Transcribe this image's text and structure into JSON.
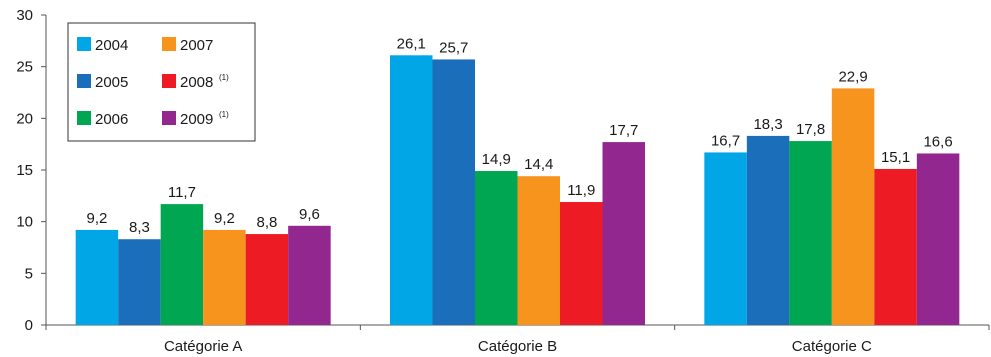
{
  "chart_data": {
    "type": "bar",
    "categories": [
      "Catégorie A",
      "Catégorie B",
      "Catégorie C"
    ],
    "series": [
      {
        "name": "2004",
        "note": "",
        "color": "#00a6e6",
        "values": [
          9.2,
          26.1,
          16.7
        ],
        "labels": [
          "9,2",
          "26,1",
          "16,7"
        ]
      },
      {
        "name": "2005",
        "note": "",
        "color": "#1b6fba",
        "values": [
          8.3,
          25.7,
          18.3
        ],
        "labels": [
          "8,3",
          "25,7",
          "18,3"
        ]
      },
      {
        "name": "2006",
        "note": "",
        "color": "#00a651",
        "values": [
          11.7,
          14.9,
          17.8
        ],
        "labels": [
          "11,7",
          "14,9",
          "17,8"
        ]
      },
      {
        "name": "2007",
        "note": "",
        "color": "#f7941d",
        "values": [
          9.2,
          14.4,
          22.9
        ],
        "labels": [
          "9,2",
          "14,4",
          "22,9"
        ]
      },
      {
        "name": "2008",
        "note": "(1)",
        "color": "#ed1c24",
        "values": [
          8.8,
          11.9,
          15.1
        ],
        "labels": [
          "8,8",
          "11,9",
          "15,1"
        ]
      },
      {
        "name": "2009",
        "note": "(1)",
        "color": "#92278f",
        "values": [
          9.6,
          17.7,
          16.6
        ],
        "labels": [
          "9,6",
          "17,7",
          "16,6"
        ]
      }
    ],
    "yticks": [
      "0",
      "5",
      "10",
      "15",
      "20",
      "25",
      "30"
    ],
    "ylim": [
      0,
      30
    ],
    "grid": false,
    "legend": "top-left",
    "title": "",
    "xlabel": "",
    "ylabel": ""
  }
}
